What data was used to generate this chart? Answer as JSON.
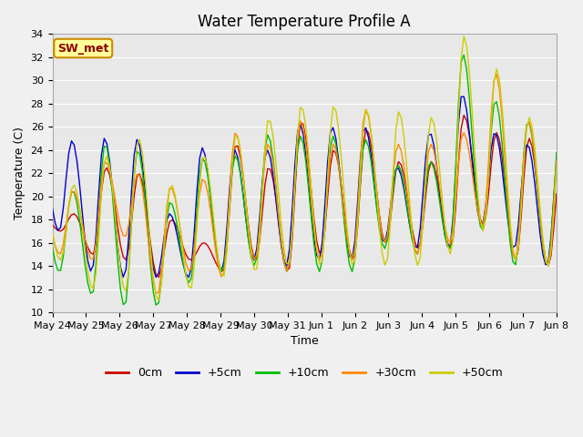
{
  "title": "Water Temperature Profile A",
  "xlabel": "Time",
  "ylabel": "Temperature (C)",
  "ylim": [
    10,
    34
  ],
  "yticks": [
    10,
    12,
    14,
    16,
    18,
    20,
    22,
    24,
    26,
    28,
    30,
    32,
    34
  ],
  "plot_bg_color": "#e8e8e8",
  "fig_bg_color": "#f0f0f0",
  "series_colors": {
    "0cm": "#cc0000",
    "+5cm": "#0000cc",
    "+10cm": "#00bb00",
    "+30cm": "#ff8800",
    "+50cm": "#cccc00"
  },
  "legend_label": "SW_met",
  "legend_box_bg": "#ffff99",
  "legend_box_border": "#cc8800",
  "x_tick_labels": [
    "May 24",
    "May 25",
    "May 26",
    "May 27",
    "May 28",
    "May 29",
    "May 30",
    "May 31",
    "Jun 1",
    "Jun 2",
    "Jun 3",
    "Jun 4",
    "Jun 5",
    "Jun 6",
    "Jun 7",
    "Jun 8"
  ],
  "title_fontsize": 12,
  "axis_label_fontsize": 9,
  "tick_fontsize": 8,
  "linewidth": 1.0
}
